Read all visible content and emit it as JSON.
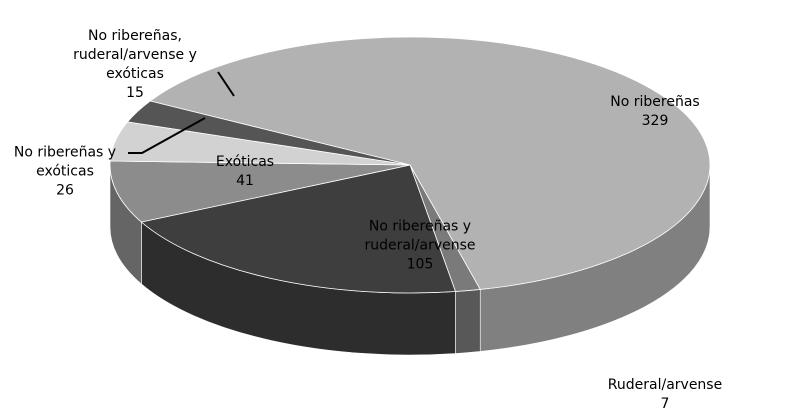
{
  "chart_data": {
    "type": "pie",
    "categories": [
      "No ribereñas",
      "Ruderal/arvense",
      "No ribereñas y ruderal/arvense",
      "Exóticas",
      "No ribereñas y exóticas",
      "No ribereñas, ruderal/arvense y exóticas"
    ],
    "values": [
      329,
      7,
      105,
      41,
      26,
      15
    ],
    "colors": [
      "#b2b2b2",
      "#7a7a7a",
      "#3e3e3e",
      "#8c8c8c",
      "#d2d2d2",
      "#555555"
    ]
  }
}
